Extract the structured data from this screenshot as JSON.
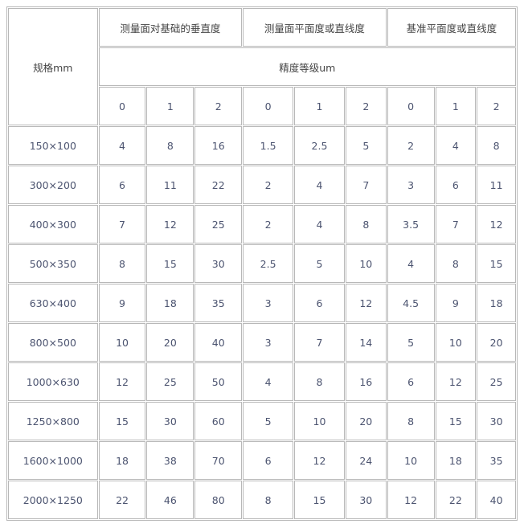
{
  "header": {
    "spec": "规格mm",
    "groups": [
      "测量面对基础的垂直度",
      "测量面平面度或直线度",
      "基准平面度或直线度"
    ],
    "precision": "精度等级um",
    "grades": [
      "0",
      "1",
      "2",
      "0",
      "1",
      "2",
      "0",
      "1",
      "2"
    ]
  },
  "rows": [
    {
      "spec": "150×100",
      "values": [
        "4",
        "8",
        "16",
        "1.5",
        "2.5",
        "5",
        "2",
        "4",
        "8"
      ]
    },
    {
      "spec": "300×200",
      "values": [
        "6",
        "11",
        "22",
        "2",
        "4",
        "7",
        "3",
        "6",
        "11"
      ]
    },
    {
      "spec": "400×300",
      "values": [
        "7",
        "12",
        "25",
        "2",
        "4",
        "8",
        "3.5",
        "7",
        "12"
      ]
    },
    {
      "spec": "500×350",
      "values": [
        "8",
        "15",
        "30",
        "2.5",
        "5",
        "10",
        "4",
        "8",
        "15"
      ]
    },
    {
      "spec": "630×400",
      "values": [
        "9",
        "18",
        "35",
        "3",
        "6",
        "12",
        "4.5",
        "9",
        "18"
      ]
    },
    {
      "spec": "800×500",
      "values": [
        "10",
        "20",
        "40",
        "3",
        "7",
        "14",
        "5",
        "10",
        "20"
      ]
    },
    {
      "spec": "1000×630",
      "values": [
        "12",
        "25",
        "50",
        "4",
        "8",
        "16",
        "6",
        "12",
        "25"
      ]
    },
    {
      "spec": "1250×800",
      "values": [
        "15",
        "30",
        "60",
        "5",
        "10",
        "20",
        "8",
        "15",
        "30"
      ]
    },
    {
      "spec": "1600×1000",
      "values": [
        "18",
        "38",
        "70",
        "6",
        "12",
        "24",
        "10",
        "18",
        "35"
      ]
    },
    {
      "spec": "2000×1250",
      "values": [
        "22",
        "46",
        "80",
        "8",
        "15",
        "30",
        "12",
        "22",
        "40"
      ]
    }
  ]
}
